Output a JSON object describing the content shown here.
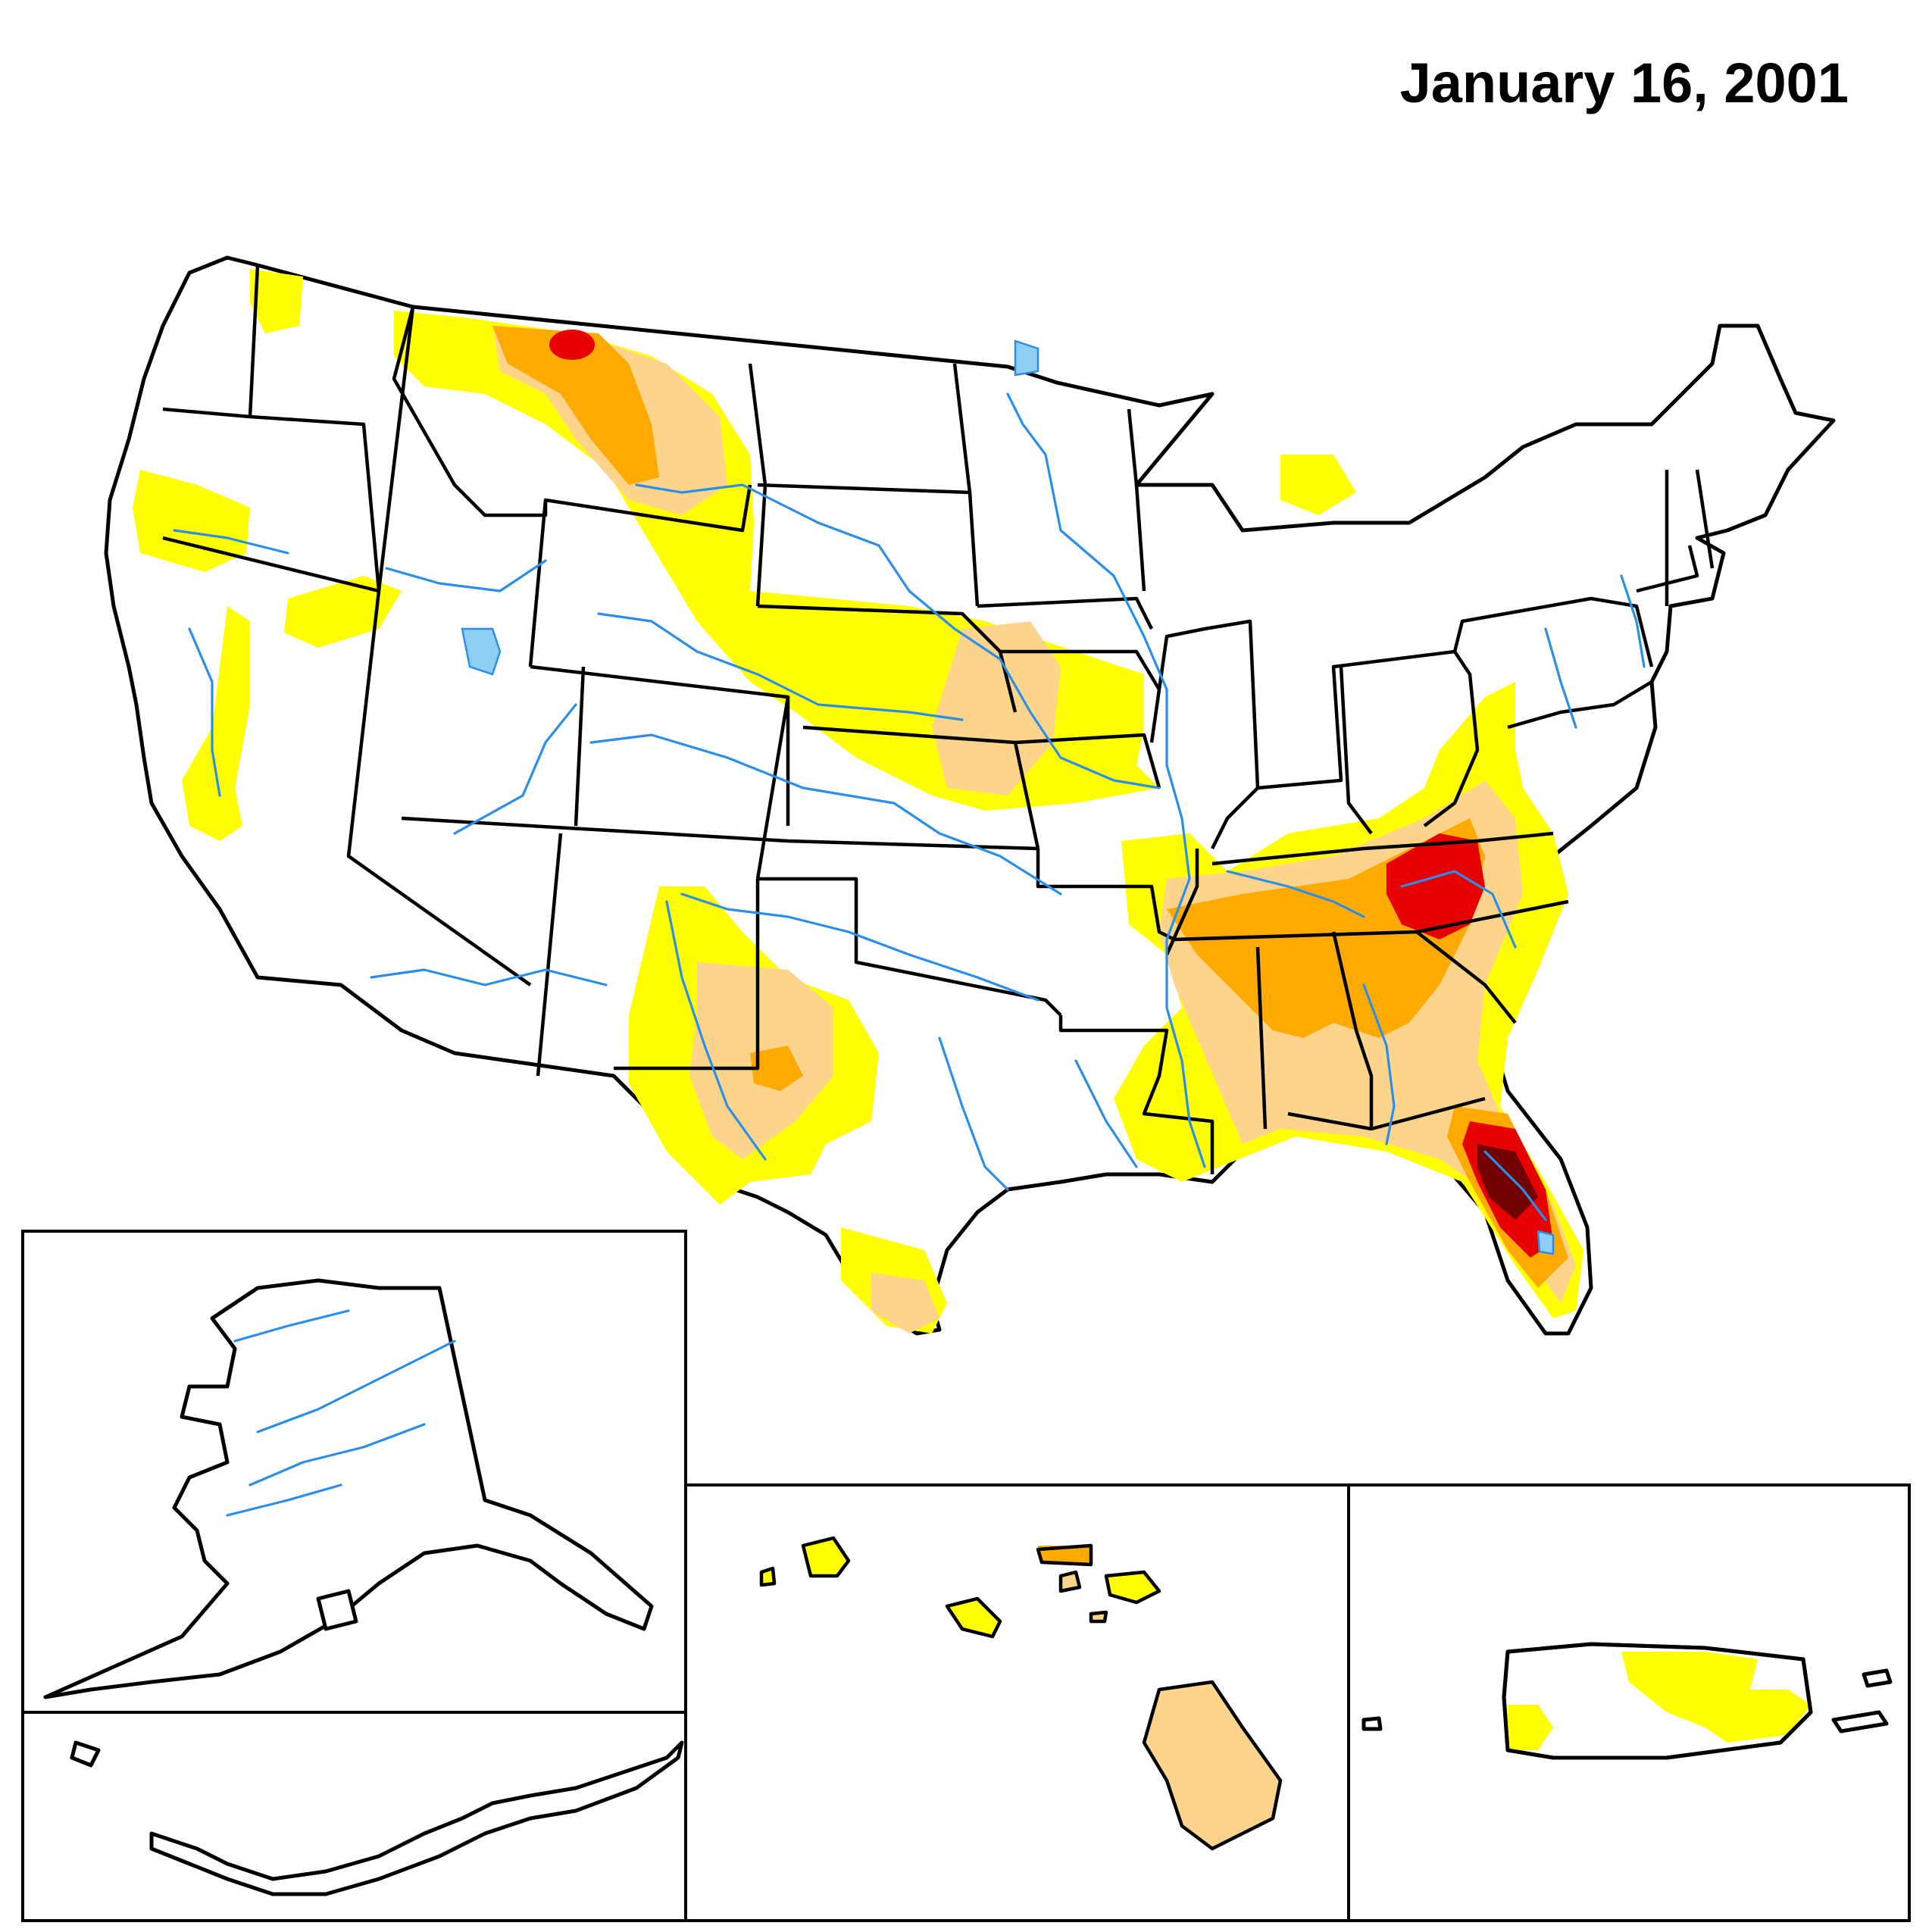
{
  "title": "January 16, 2001",
  "colors": {
    "d0": "#ffff00",
    "d1": "#fcd48c",
    "d2": "#ffaa00",
    "d3": "#e60000",
    "d4": "#730000",
    "water": "#2b8ee8",
    "lake_fill": "#8ecdf4",
    "outline": "#000000",
    "background": "#ffffff"
  },
  "insets": [
    "Alaska",
    "Hawaii",
    "Puerto Rico"
  ]
}
